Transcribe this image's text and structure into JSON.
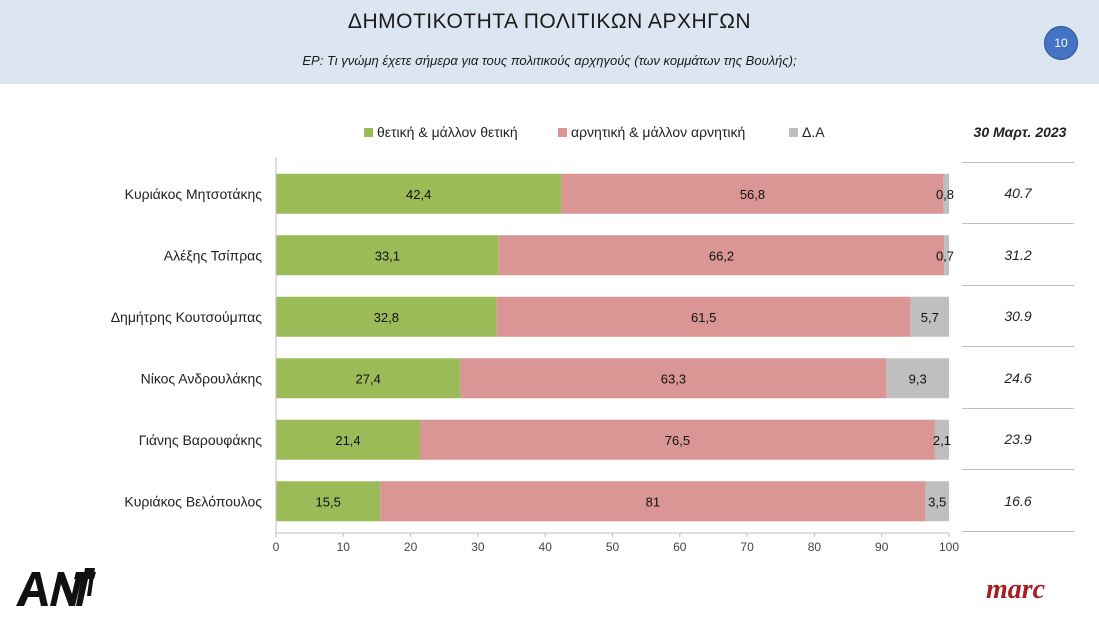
{
  "header": {
    "title": "ΔΗΜΟΤΙΚΟΤΗΤΑ ΠΟΛΙΤΙΚΩΝ ΑΡΧΗΓΩΝ",
    "subtitle": "ΕΡ: Τι γνώμη έχετε σήμερα για τους πολιτικούς αρχηγούς (των κομμάτων της Βουλής);",
    "page_number": "10"
  },
  "side_table": {
    "header": "30 Μαρτ. 2023",
    "values": [
      "40.7",
      "31.2",
      "30.9",
      "24.6",
      "23.9",
      "16.6"
    ]
  },
  "logos": {
    "left": "ANT1",
    "right": "marc"
  },
  "colors": {
    "positive": "#9bbb59",
    "negative": "#d99694",
    "dk": "#bfbfbf",
    "header_bg": "#dce6f2",
    "badge": "#4472c4",
    "marc": "#a41e22"
  },
  "chart_data": {
    "type": "bar",
    "orientation": "horizontal",
    "stacked": true,
    "categories": [
      "Κυριάκος Μητσοτάκης",
      "Αλέξης Τσίπρας",
      "Δημήτρης Κουτσούμπας",
      "Νίκος Ανδρουλάκης",
      "Γιάνης Βαρουφάκης",
      "Κυριάκος Βελόπουλος"
    ],
    "series": [
      {
        "name": "θετική & μάλλον θετική",
        "values": [
          42.4,
          33.1,
          32.8,
          27.4,
          21.4,
          15.5
        ],
        "labels": [
          "42,4",
          "33,1",
          "32,8",
          "27,4",
          "21,4",
          "15,5"
        ],
        "color": "#9bbb59"
      },
      {
        "name": "αρνητική & μάλλον αρνητική",
        "values": [
          56.8,
          66.2,
          61.5,
          63.3,
          76.5,
          81
        ],
        "labels": [
          "56,8",
          "66,2",
          "61,5",
          "63,3",
          "76,5",
          "81"
        ],
        "color": "#d99694"
      },
      {
        "name": "Δ.Α",
        "values": [
          0.8,
          0.7,
          5.7,
          9.3,
          2.1,
          3.5
        ],
        "labels": [
          "0,8",
          "0,7",
          "5,7",
          "9,3",
          "2,1",
          "3,5"
        ],
        "color": "#bfbfbf"
      }
    ],
    "xlim": [
      0,
      100
    ],
    "xticks": [
      0,
      10,
      20,
      30,
      40,
      50,
      60,
      70,
      80,
      90,
      100
    ],
    "legend_position": "top",
    "grid": false
  }
}
